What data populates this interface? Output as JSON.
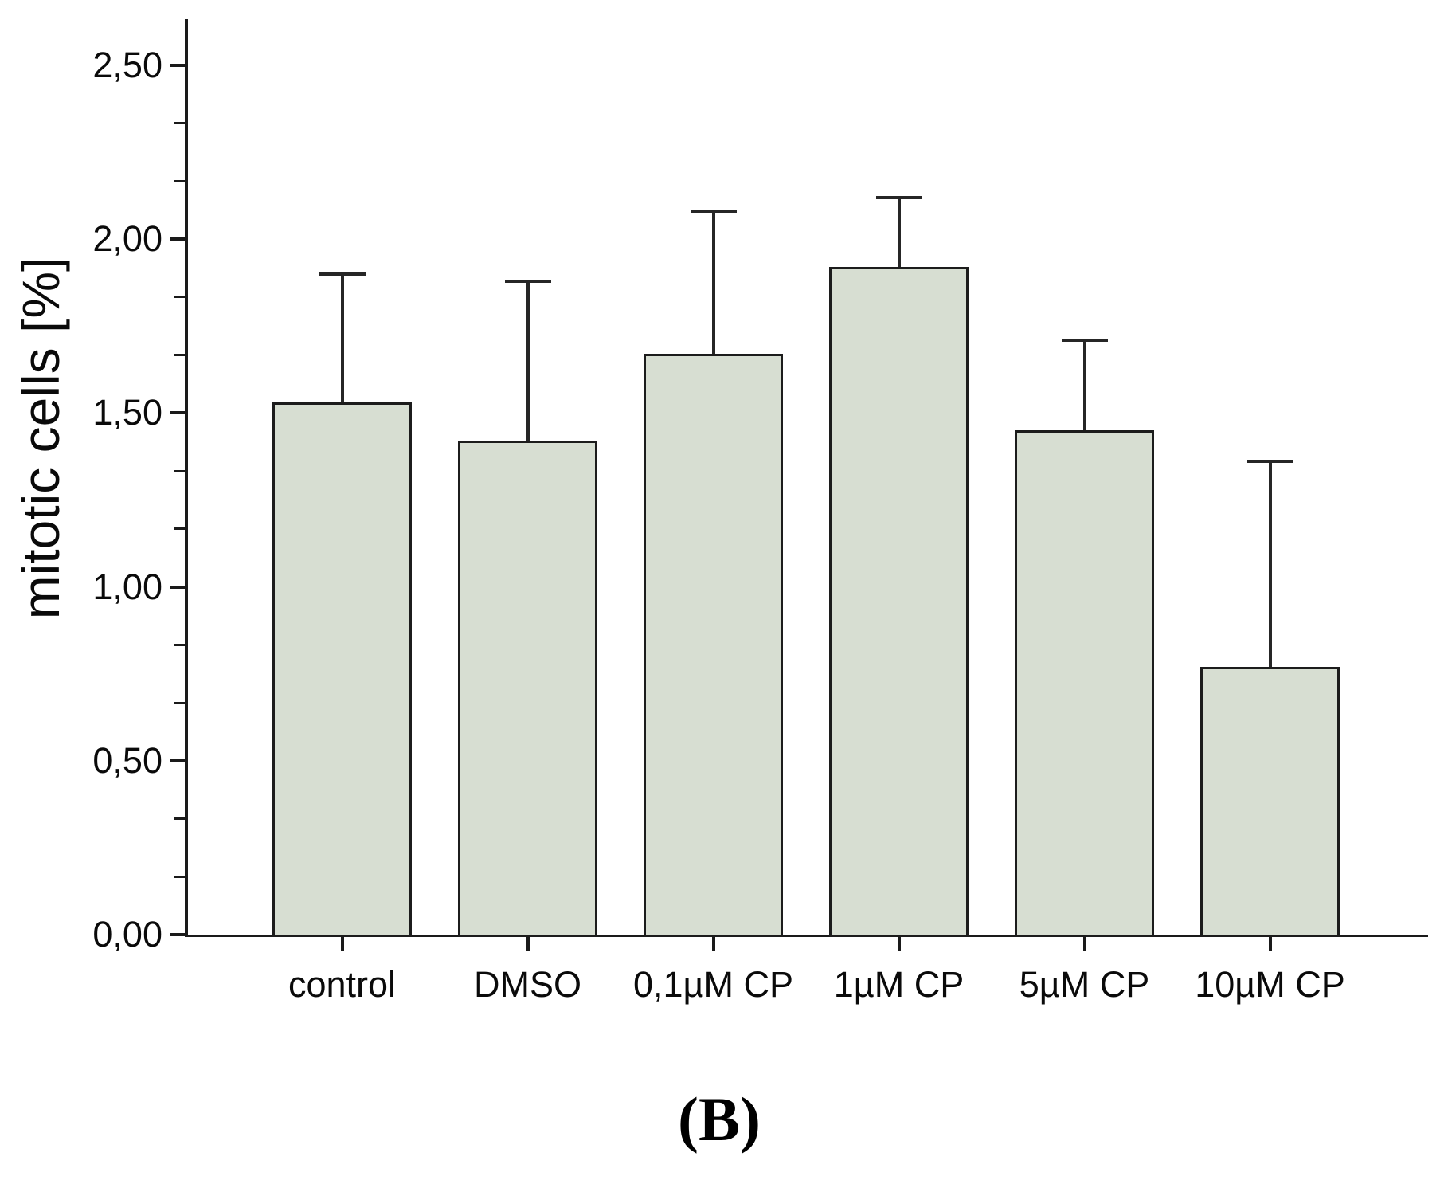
{
  "figure": {
    "caption": "(B)"
  },
  "chart_data": {
    "type": "bar",
    "title": "",
    "xlabel": "",
    "ylabel": "mitotic cells [%]",
    "categories": [
      "control",
      "DMSO",
      "0,1µM CP",
      "1µM CP",
      "5µM CP",
      "10µM CP"
    ],
    "values": [
      1.53,
      1.42,
      1.67,
      1.92,
      1.45,
      0.77
    ],
    "errors_plus": [
      0.37,
      0.46,
      0.41,
      0.2,
      0.26,
      0.59
    ],
    "error_bar_tops": [
      1.9,
      1.88,
      2.08,
      2.12,
      1.71,
      1.36
    ],
    "error_bars": "upper-only",
    "ylim": [
      0.0,
      2.63
    ],
    "yticks": [
      {
        "value": 0.0,
        "label": "0,00"
      },
      {
        "value": 0.5,
        "label": "0,50"
      },
      {
        "value": 1.0,
        "label": "1,00"
      },
      {
        "value": 1.5,
        "label": "1,50"
      },
      {
        "value": 2.0,
        "label": "2,00"
      },
      {
        "value": 2.5,
        "label": "2,50"
      }
    ],
    "minor_ticks_per_interval": 2,
    "grid": false,
    "legend": "none",
    "decimal_separator": ",",
    "colors": {
      "bar_fill": "#d7ded2",
      "bar_border": "#1c1c1c",
      "axis": "#1a1a1a",
      "error_bar": "#262626",
      "background": "#ffffff"
    }
  }
}
